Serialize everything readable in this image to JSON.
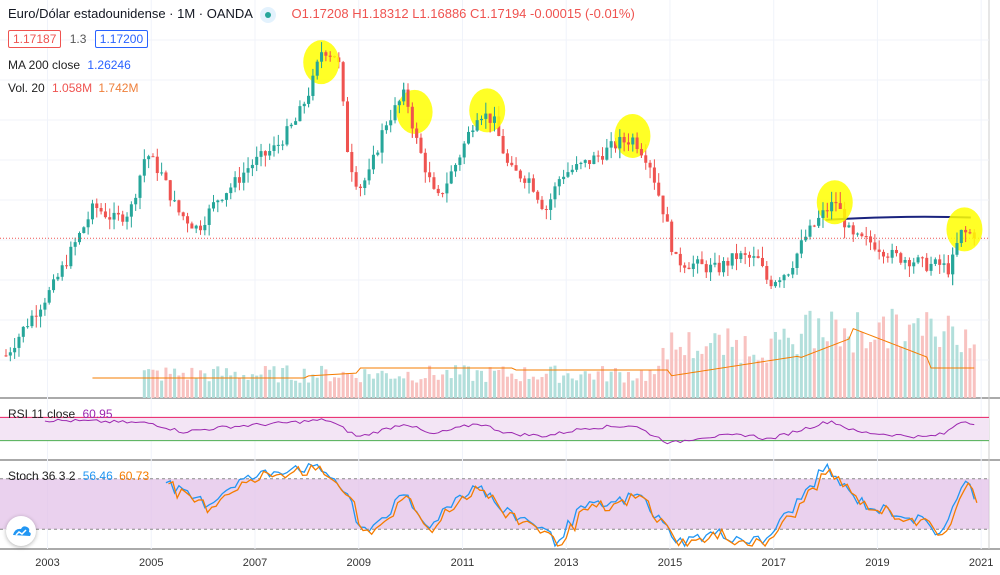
{
  "header": {
    "symbol_title": "Euro/Dólar estadounidense · 1M · OANDA",
    "ohlc": "O1.17208  H1.18312  L1.16886  C1.17194  -0.00015 (-0.01%)",
    "bid": "1.17187",
    "spread": "1.3",
    "ask": "1.17200"
  },
  "indicators": {
    "ma_label": "MA 200 close",
    "ma_value": "1.26246",
    "vol_label": "Vol. 20",
    "vol_value1": "1.058M",
    "vol_value2": "1.742M",
    "rsi_label": "RSI 11 close",
    "rsi_value": "60.95",
    "stoch_label": "Stoch 36 3 2",
    "stoch_k": "56.46",
    "stoch_d": "60.73"
  },
  "chart_data": {
    "type": "candlestick",
    "colors": {
      "up": "#26a69a",
      "down": "#ef5350",
      "ma": "#2962ff",
      "vol_ma": "#f57c00",
      "rsi": "#9c27b0",
      "stoch_k": "#2196f3",
      "stoch_d": "#f57c00",
      "highlight": "#ffff00",
      "bands": "#e1bee7"
    },
    "x_tick_labels": [
      "2003",
      "2005",
      "2007",
      "2009",
      "2011",
      "2013",
      "2015",
      "2017",
      "2019",
      "2021"
    ],
    "price_keypoints": [
      [
        2002.2,
        0.9
      ],
      [
        2002.6,
        0.97
      ],
      [
        2003.1,
        1.05
      ],
      [
        2003.5,
        1.14
      ],
      [
        2003.9,
        1.23
      ],
      [
        2004.3,
        1.2
      ],
      [
        2004.6,
        1.22
      ],
      [
        2004.9,
        1.35
      ],
      [
        2005.2,
        1.3
      ],
      [
        2005.5,
        1.22
      ],
      [
        2005.9,
        1.18
      ],
      [
        2006.3,
        1.25
      ],
      [
        2006.6,
        1.28
      ],
      [
        2006.9,
        1.32
      ],
      [
        2007.4,
        1.36
      ],
      [
        2007.8,
        1.42
      ],
      [
        2008.1,
        1.5
      ],
      [
        2008.3,
        1.58
      ],
      [
        2008.6,
        1.56
      ],
      [
        2008.8,
        1.34
      ],
      [
        2009.0,
        1.27
      ],
      [
        2009.2,
        1.3
      ],
      [
        2009.5,
        1.41
      ],
      [
        2009.9,
        1.48
      ],
      [
        2010.1,
        1.38
      ],
      [
        2010.5,
        1.24
      ],
      [
        2010.9,
        1.33
      ],
      [
        2011.3,
        1.44
      ],
      [
        2011.6,
        1.42
      ],
      [
        2011.9,
        1.31
      ],
      [
        2012.3,
        1.29
      ],
      [
        2012.6,
        1.22
      ],
      [
        2012.9,
        1.3
      ],
      [
        2013.3,
        1.32
      ],
      [
        2013.6,
        1.34
      ],
      [
        2014.0,
        1.37
      ],
      [
        2014.3,
        1.38
      ],
      [
        2014.6,
        1.33
      ],
      [
        2014.9,
        1.21
      ],
      [
        2015.1,
        1.11
      ],
      [
        2015.5,
        1.1
      ],
      [
        2015.9,
        1.09
      ],
      [
        2016.3,
        1.12
      ],
      [
        2016.7,
        1.11
      ],
      [
        2016.9,
        1.06
      ],
      [
        2017.3,
        1.09
      ],
      [
        2017.6,
        1.16
      ],
      [
        2018.0,
        1.22
      ],
      [
        2018.2,
        1.24
      ],
      [
        2018.5,
        1.16
      ],
      [
        2018.9,
        1.15
      ],
      [
        2019.3,
        1.12
      ],
      [
        2019.7,
        1.11
      ],
      [
        2019.9,
        1.1
      ],
      [
        2020.2,
        1.1
      ],
      [
        2020.4,
        1.09
      ],
      [
        2020.6,
        1.17
      ],
      [
        2020.8,
        1.17
      ],
      [
        2020.9,
        1.17
      ]
    ],
    "rsi_keypoints": [
      [
        2002.2,
        62
      ],
      [
        2003.0,
        65
      ],
      [
        2004.0,
        63
      ],
      [
        2005.0,
        60
      ],
      [
        2005.6,
        45
      ],
      [
        2006.5,
        54
      ],
      [
        2007.5,
        60
      ],
      [
        2008.4,
        66
      ],
      [
        2009.0,
        36
      ],
      [
        2009.9,
        60
      ],
      [
        2010.4,
        40
      ],
      [
        2011.3,
        60
      ],
      [
        2011.9,
        42
      ],
      [
        2012.6,
        38
      ],
      [
        2013.4,
        52
      ],
      [
        2014.3,
        56
      ],
      [
        2015.0,
        25
      ],
      [
        2015.6,
        36
      ],
      [
        2016.5,
        40
      ],
      [
        2016.9,
        32
      ],
      [
        2018.1,
        64
      ],
      [
        2018.6,
        45
      ],
      [
        2019.3,
        40
      ],
      [
        2019.9,
        36
      ],
      [
        2020.3,
        42
      ],
      [
        2020.6,
        64
      ],
      [
        2020.9,
        60
      ]
    ],
    "stoch_keypoints": [
      [
        2005.2,
        80
      ],
      [
        2005.6,
        62
      ],
      [
        2006.1,
        50
      ],
      [
        2006.6,
        75
      ],
      [
        2007.2,
        86
      ],
      [
        2007.8,
        95
      ],
      [
        2008.4,
        88
      ],
      [
        2008.8,
        60
      ],
      [
        2009.0,
        18
      ],
      [
        2009.3,
        25
      ],
      [
        2009.9,
        60
      ],
      [
        2010.3,
        22
      ],
      [
        2010.9,
        58
      ],
      [
        2011.3,
        74
      ],
      [
        2011.8,
        40
      ],
      [
        2012.4,
        28
      ],
      [
        2012.8,
        5
      ],
      [
        2013.3,
        45
      ],
      [
        2013.9,
        50
      ],
      [
        2014.4,
        62
      ],
      [
        2014.8,
        30
      ],
      [
        2015.2,
        5
      ],
      [
        2015.9,
        15
      ],
      [
        2016.4,
        8
      ],
      [
        2016.8,
        5
      ],
      [
        2017.5,
        55
      ],
      [
        2018.0,
        94
      ],
      [
        2018.5,
        60
      ],
      [
        2018.9,
        45
      ],
      [
        2019.4,
        40
      ],
      [
        2019.9,
        28
      ],
      [
        2020.2,
        15
      ],
      [
        2020.5,
        50
      ],
      [
        2020.7,
        75
      ],
      [
        2020.9,
        60
      ]
    ],
    "highlights": [
      2008.2,
      2010.0,
      2011.4,
      2014.2,
      2018.1,
      2020.6
    ]
  }
}
